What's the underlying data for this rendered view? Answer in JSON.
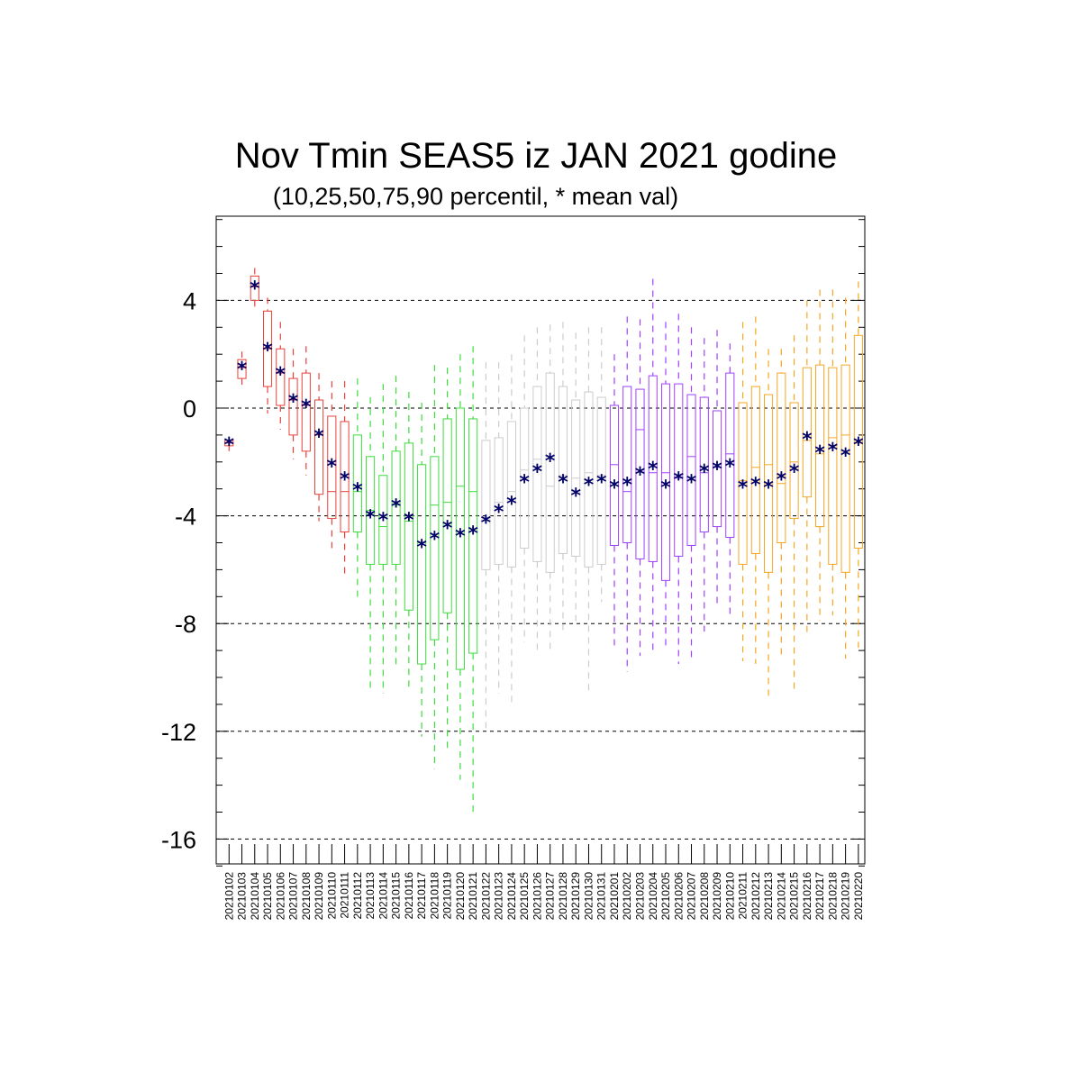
{
  "chart_data": {
    "type": "box",
    "title": "Nov Tmin SEAS5 iz JAN 2021 godine",
    "subtitle": "(10,25,50,75,90 percentil, * mean val)",
    "xlabel": "",
    "ylabel": "",
    "ylim": [
      -17.5,
      7.5
    ],
    "yticks": [
      4,
      0,
      -4,
      -8,
      -12,
      -16
    ],
    "ytick_labels": [
      "4",
      "0",
      "-4",
      "-8",
      "-12",
      "-16"
    ],
    "grid": "horizontal dashed at major ticks",
    "mean_marker": "*",
    "colors": {
      "red": "#e8413a",
      "green": "#3ddc3d",
      "gray": "#cccccc",
      "purple": "#a040ff",
      "orange": "#f5a623",
      "mean": "#000066",
      "grid": "#000000"
    },
    "categories": [
      "20210102",
      "20210103",
      "20210104",
      "20210105",
      "20210106",
      "20210107",
      "20210108",
      "20210109",
      "20210110",
      "20210111",
      "20210112",
      "20210113",
      "20210114",
      "20210115",
      "20210116",
      "20210117",
      "20210118",
      "20210119",
      "20210120",
      "20210121",
      "20210122",
      "20210123",
      "20210124",
      "20210125",
      "20210126",
      "20210127",
      "20210128",
      "20210129",
      "20210130",
      "20210131",
      "20210201",
      "20210202",
      "20210203",
      "20210204",
      "20210205",
      "20210206",
      "20210207",
      "20210208",
      "20210209",
      "20210210",
      "20210211",
      "20210212",
      "20210213",
      "20210214",
      "20210215",
      "20210216",
      "20210217",
      "20210218",
      "20210219",
      "20210220"
    ],
    "boxes": [
      {
        "color": "red",
        "p10": -1.6,
        "p25": -1.4,
        "p50": -1.3,
        "p75": -1.2,
        "p90": -1.1,
        "mean": -1.3
      },
      {
        "color": "red",
        "p10": 0.7,
        "p25": 1.1,
        "p50": 1.5,
        "p75": 1.8,
        "p90": 2.1,
        "mean": 1.5
      },
      {
        "color": "red",
        "p10": 3.7,
        "p25": 4.0,
        "p50": 4.5,
        "p75": 4.9,
        "p90": 5.2,
        "mean": 4.5
      },
      {
        "color": "red",
        "p10": -0.2,
        "p25": 0.8,
        "p50": 2.2,
        "p75": 3.6,
        "p90": 4.1,
        "mean": 2.2
      },
      {
        "color": "red",
        "p10": -0.8,
        "p25": 0.1,
        "p50": 1.3,
        "p75": 2.2,
        "p90": 3.2,
        "mean": 1.3
      },
      {
        "color": "red",
        "p10": -1.9,
        "p25": -1.0,
        "p50": 0.3,
        "p75": 1.1,
        "p90": 2.2,
        "mean": 0.3
      },
      {
        "color": "red",
        "p10": -2.5,
        "p25": -1.6,
        "p50": 0.1,
        "p75": 1.3,
        "p90": 2.3,
        "mean": 0.1
      },
      {
        "color": "red",
        "p10": -4.2,
        "p25": -3.2,
        "p50": -1.0,
        "p75": 0.3,
        "p90": 1.3,
        "mean": -1.0
      },
      {
        "color": "red",
        "p10": -5.2,
        "p25": -4.1,
        "p50": -3.1,
        "p75": -0.3,
        "p90": 1.0,
        "mean": -2.1
      },
      {
        "color": "red",
        "p10": -6.3,
        "p25": -4.6,
        "p50": -3.1,
        "p75": -0.5,
        "p90": 1.0,
        "mean": -2.6
      },
      {
        "color": "green",
        "p10": -7.2,
        "p25": -4.6,
        "p50": -3.1,
        "p75": -1.0,
        "p90": 1.1,
        "mean": -3.0
      },
      {
        "color": "green",
        "p10": -10.4,
        "p25": -5.8,
        "p50": -3.8,
        "p75": -1.8,
        "p90": 0.4,
        "mean": -4.0
      },
      {
        "color": "green",
        "p10": -10.6,
        "p25": -5.8,
        "p50": -4.4,
        "p75": -2.5,
        "p90": 0.9,
        "mean": -4.1
      },
      {
        "color": "green",
        "p10": -9.7,
        "p25": -5.8,
        "p50": -3.6,
        "p75": -1.6,
        "p90": 1.2,
        "mean": -3.6
      },
      {
        "color": "green",
        "p10": -10.5,
        "p25": -7.5,
        "p50": -4.2,
        "p75": -1.3,
        "p90": 0.6,
        "mean": -4.1
      },
      {
        "color": "green",
        "p10": -12.2,
        "p25": -9.5,
        "p50": -5.0,
        "p75": -2.1,
        "p90": 0.2,
        "mean": -5.1
      },
      {
        "color": "green",
        "p10": -13.4,
        "p25": -8.6,
        "p50": -3.6,
        "p75": -1.8,
        "p90": 1.6,
        "mean": -4.8
      },
      {
        "color": "green",
        "p10": -12.8,
        "p25": -7.6,
        "p50": -3.5,
        "p75": -0.4,
        "p90": 1.5,
        "mean": -4.4
      },
      {
        "color": "green",
        "p10": -13.8,
        "p25": -9.7,
        "p50": -2.9,
        "p75": 0.0,
        "p90": 2.0,
        "mean": -4.7
      },
      {
        "color": "green",
        "p10": -15.0,
        "p25": -9.1,
        "p50": -3.1,
        "p75": -0.4,
        "p90": 2.3,
        "mean": -4.6
      },
      {
        "color": "gray",
        "p10": -12.0,
        "p25": -6.0,
        "p50": -4.2,
        "p75": -1.2,
        "p90": 1.7,
        "mean": -4.2
      },
      {
        "color": "gray",
        "p10": -10.6,
        "p25": -5.8,
        "p50": -3.5,
        "p75": -1.1,
        "p90": 1.7,
        "mean": -3.8
      },
      {
        "color": "gray",
        "p10": -11.0,
        "p25": -5.9,
        "p50": -3.1,
        "p75": -0.5,
        "p90": 2.0,
        "mean": -3.5
      },
      {
        "color": "gray",
        "p10": -8.7,
        "p25": -5.2,
        "p50": -2.3,
        "p75": 0.0,
        "p90": 2.7,
        "mean": -2.7
      },
      {
        "color": "gray",
        "p10": -9.0,
        "p25": -5.7,
        "p50": -1.9,
        "p75": 0.8,
        "p90": 3.0,
        "mean": -2.3
      },
      {
        "color": "gray",
        "p10": -9.0,
        "p25": -6.1,
        "p50": -2.9,
        "p75": 1.3,
        "p90": 3.1,
        "mean": -1.9
      },
      {
        "color": "gray",
        "p10": -8.3,
        "p25": -5.4,
        "p50": -2.5,
        "p75": 0.8,
        "p90": 3.2,
        "mean": -2.7
      },
      {
        "color": "gray",
        "p10": -8.1,
        "p25": -5.5,
        "p50": -2.6,
        "p75": 0.3,
        "p90": 2.8,
        "mean": -3.2
      },
      {
        "color": "gray",
        "p10": -10.6,
        "p25": -5.9,
        "p50": -2.4,
        "p75": 0.6,
        "p90": 3.0,
        "mean": -2.8
      },
      {
        "color": "gray",
        "p10": -7.2,
        "p25": -5.8,
        "p50": -2.5,
        "p75": 0.4,
        "p90": 3.0,
        "mean": -2.7
      },
      {
        "color": "purple",
        "p10": -9.0,
        "p25": -5.1,
        "p50": -2.1,
        "p75": 0.1,
        "p90": 2.0,
        "mean": -2.9
      },
      {
        "color": "purple",
        "p10": -9.8,
        "p25": -5.0,
        "p50": -3.1,
        "p75": 0.8,
        "p90": 3.4,
        "mean": -2.8
      },
      {
        "color": "purple",
        "p10": -9.2,
        "p25": -5.6,
        "p50": -0.8,
        "p75": 0.7,
        "p90": 3.3,
        "mean": -2.4
      },
      {
        "color": "purple",
        "p10": -9.1,
        "p25": -5.7,
        "p50": -2.4,
        "p75": 1.2,
        "p90": 4.8,
        "mean": -2.2
      },
      {
        "color": "purple",
        "p10": -9.0,
        "p25": -6.4,
        "p50": -2.4,
        "p75": 0.9,
        "p90": 3.2,
        "mean": -2.9
      },
      {
        "color": "purple",
        "p10": -9.5,
        "p25": -5.5,
        "p50": -2.6,
        "p75": 0.9,
        "p90": 3.5,
        "mean": -2.6
      },
      {
        "color": "purple",
        "p10": -9.4,
        "p25": -5.1,
        "p50": -1.8,
        "p75": 0.5,
        "p90": 3.0,
        "mean": -2.7
      },
      {
        "color": "purple",
        "p10": -8.3,
        "p25": -4.6,
        "p50": -2.4,
        "p75": 0.4,
        "p90": 2.6,
        "mean": -2.3
      },
      {
        "color": "purple",
        "p10": -7.4,
        "p25": -4.4,
        "p50": -2.2,
        "p75": -0.1,
        "p90": 2.9,
        "mean": -2.2
      },
      {
        "color": "purple",
        "p10": -7.8,
        "p25": -4.8,
        "p50": -1.7,
        "p75": 1.3,
        "p90": 2.4,
        "mean": -2.1
      },
      {
        "color": "orange",
        "p10": -9.4,
        "p25": -5.8,
        "p50": -2.7,
        "p75": 0.2,
        "p90": 3.2,
        "mean": -2.9
      },
      {
        "color": "orange",
        "p10": -9.5,
        "p25": -5.4,
        "p50": -2.2,
        "p75": 0.8,
        "p90": 3.4,
        "mean": -2.8
      },
      {
        "color": "orange",
        "p10": -10.8,
        "p25": -6.1,
        "p50": -2.1,
        "p75": 0.5,
        "p90": 2.2,
        "mean": -2.9
      },
      {
        "color": "orange",
        "p10": -9.2,
        "p25": -5.0,
        "p50": -2.8,
        "p75": 1.3,
        "p90": 2.2,
        "mean": -2.6
      },
      {
        "color": "orange",
        "p10": -10.6,
        "p25": -4.1,
        "p50": -2.0,
        "p75": 0.2,
        "p90": 2.7,
        "mean": -2.3
      },
      {
        "color": "orange",
        "p10": -8.4,
        "p25": -3.3,
        "p50": -1.2,
        "p75": 1.5,
        "p90": 4.0,
        "mean": -1.1
      },
      {
        "color": "orange",
        "p10": -7.9,
        "p25": -4.4,
        "p50": -1.7,
        "p75": 1.6,
        "p90": 4.4,
        "mean": -1.6
      },
      {
        "color": "orange",
        "p10": -7.7,
        "p25": -5.8,
        "p50": -1.1,
        "p75": 1.5,
        "p90": 4.4,
        "mean": -1.5
      },
      {
        "color": "orange",
        "p10": -9.3,
        "p25": -6.1,
        "p50": -1.0,
        "p75": 1.6,
        "p90": 4.1,
        "mean": -1.7
      },
      {
        "color": "orange",
        "p10": -8.9,
        "p25": -5.2,
        "p50": -1.3,
        "p75": 2.7,
        "p90": 4.7,
        "mean": -1.3
      }
    ]
  }
}
